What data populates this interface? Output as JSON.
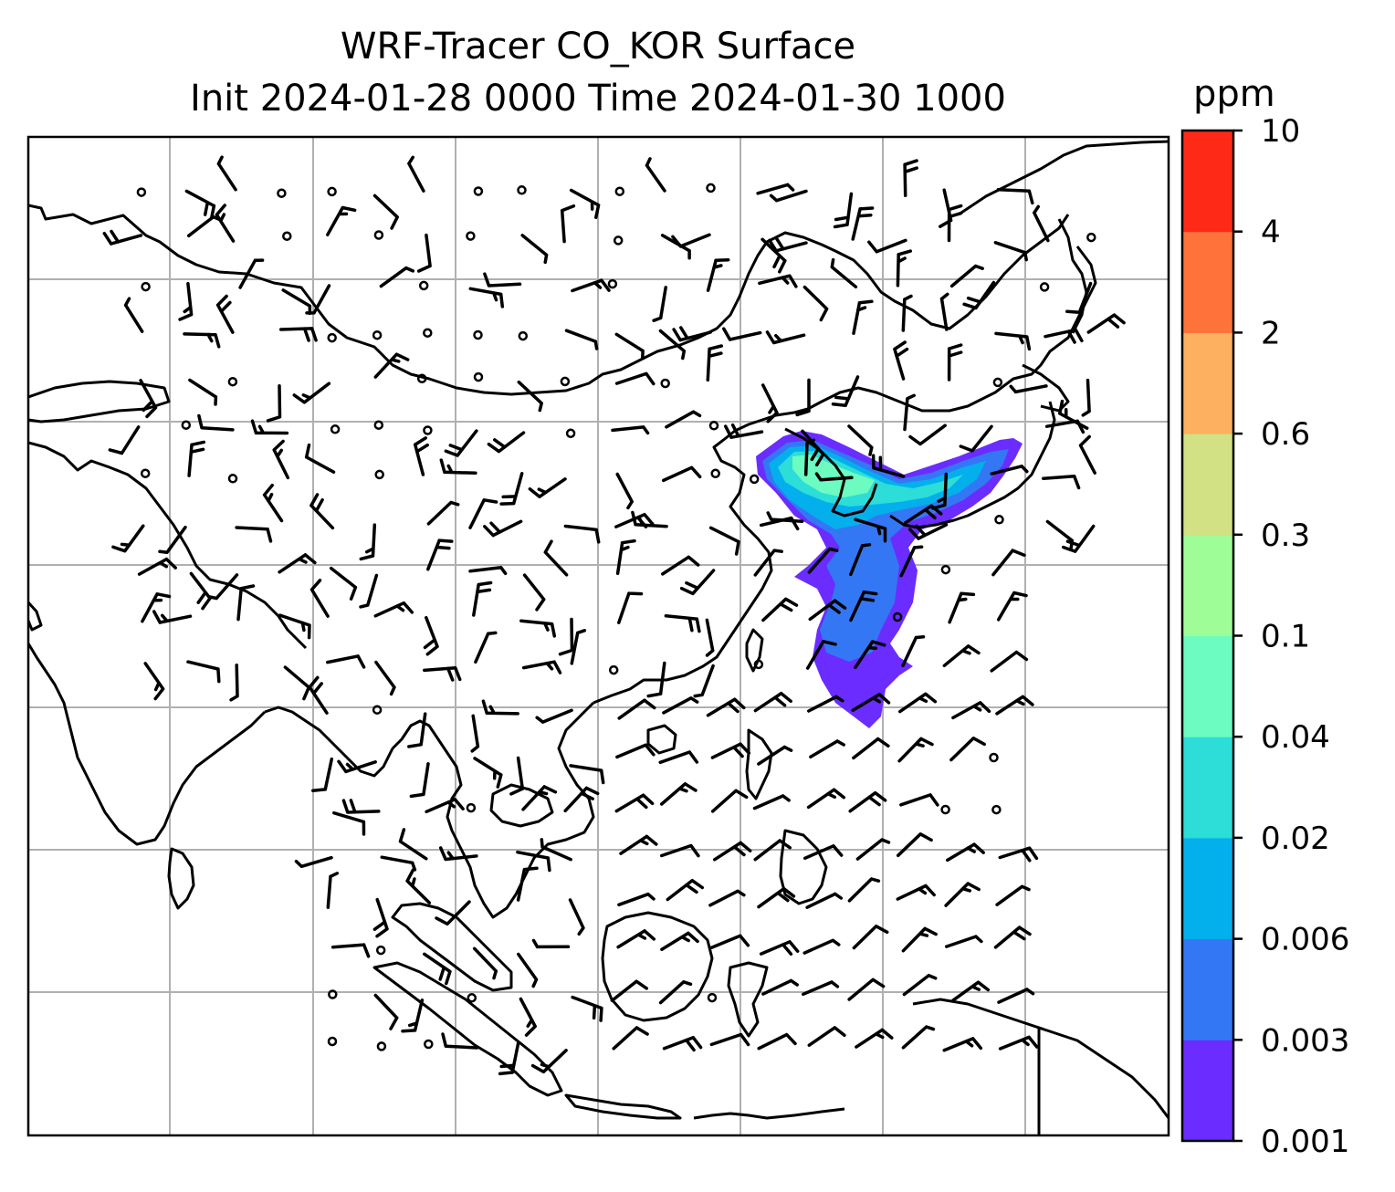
{
  "title": {
    "line1": "WRF-Tracer CO_KOR Surface",
    "line2": "Init 2024-01-28 0000 Time 2024-01-30 1000"
  },
  "colorbar": {
    "units": "ppm",
    "levels": [
      "0.001",
      "0.003",
      "0.006",
      "0.02",
      "0.04",
      "0.1",
      "0.3",
      "0.6",
      "2",
      "4",
      "10"
    ],
    "colors": [
      "#6a2cff",
      "#3477f5",
      "#03b0ec",
      "#2dddd7",
      "#6cfbc0",
      "#9ffd97",
      "#d1e184",
      "#fdb05f",
      "#ff7239",
      "#fe2a17"
    ]
  },
  "map": {
    "gridlines": true,
    "coastline_color": "#000000",
    "grid_color": "#b0b0b0",
    "plume_colors": {
      "outer": "#6a2cff",
      "mid": "#3477f5",
      "inner": "#03b0ec",
      "core": "#2dddd7",
      "peak": "#6cfbc0"
    }
  }
}
